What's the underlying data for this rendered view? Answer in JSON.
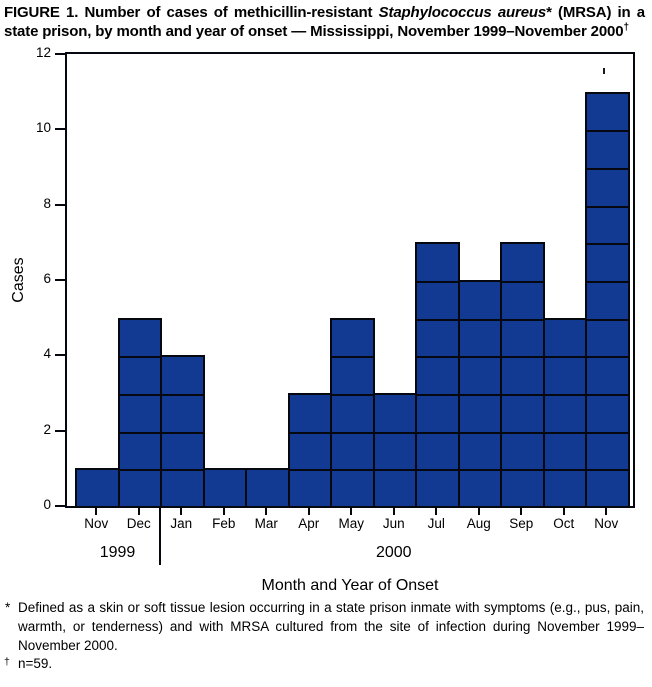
{
  "title": {
    "part1": "FIGURE 1. Number of cases of methicillin-resistant ",
    "italic": "Staphylococcus aureus",
    "part2": "* (MRSA) in a state prison, by month and year of onset — Mississippi, November 1999–November 2000",
    "superscript": "†"
  },
  "chart_data": {
    "type": "bar",
    "title": "Number of cases of methicillin-resistant Staphylococcus aureus (MRSA) in a state prison, by month and year of onset — Mississippi, November 1999–November 2000",
    "categories": [
      "Nov",
      "Dec",
      "Jan",
      "Feb",
      "Mar",
      "Apr",
      "May",
      "Jun",
      "Jul",
      "Aug",
      "Sep",
      "Oct",
      "Nov"
    ],
    "values": [
      1,
      5,
      4,
      1,
      1,
      3,
      5,
      3,
      7,
      6,
      7,
      5,
      11
    ],
    "year_groups": [
      {
        "label": "1999",
        "span": 2
      },
      {
        "label": "2000",
        "span": 11
      }
    ],
    "xlabel": "Month and Year of Onset",
    "ylabel": "Cases",
    "ylim": [
      0,
      12
    ],
    "yticks": [
      0,
      2,
      4,
      6,
      8,
      10,
      12
    ],
    "n": 59,
    "grid": false,
    "legend": "none",
    "style": {
      "bar_color": "#123a92",
      "line_color": "#05080f",
      "unit_blocks": true
    }
  },
  "footnotes": [
    {
      "marker": "*",
      "superscript": false,
      "text": "Defined as a skin or soft tissue lesion occurring in a state prison inmate with symptoms (e.g., pus, pain, warmth, or tenderness) and with MRSA cultured from the site of infection during November 1999–November 2000."
    },
    {
      "marker": "†",
      "superscript": true,
      "text": "n=59."
    }
  ]
}
